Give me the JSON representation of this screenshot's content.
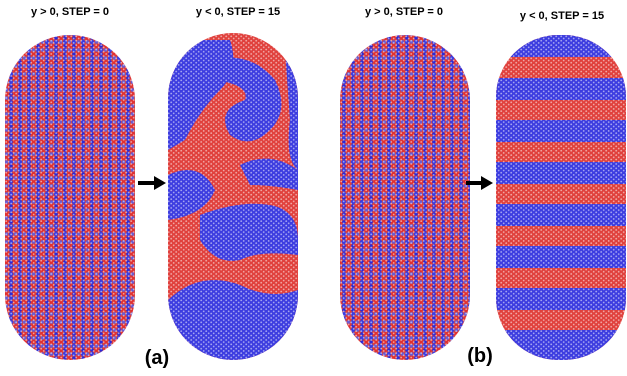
{
  "panels": [
    {
      "label": "(a)",
      "left_title": "y > 0, STEP =  0",
      "right_title": "y < 0, STEP =  15"
    },
    {
      "label": "(b)",
      "left_title": "y > 0, STEP =  0",
      "right_title": "y < 0, STEP =  15"
    }
  ]
}
